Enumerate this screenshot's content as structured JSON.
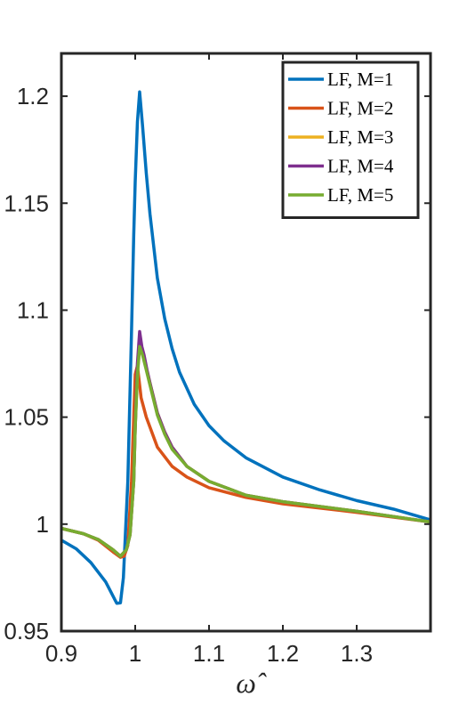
{
  "chart_data": {
    "type": "line",
    "xlabel": "ω̂",
    "ylabel": "",
    "xlim": [
      0.9,
      1.4
    ],
    "ylim": [
      0.95,
      1.22
    ],
    "xticks": [
      0.9,
      1.0,
      1.1,
      1.2,
      1.3
    ],
    "xtick_labels": [
      "0.9",
      "1",
      "1.1",
      "1.2",
      "1.3"
    ],
    "yticks": [
      0.95,
      1.0,
      1.05,
      1.1,
      1.15,
      1.2
    ],
    "ytick_labels": [
      "0.95",
      "1",
      "1.05",
      "1.1",
      "1.15",
      "1.2"
    ],
    "grid": false,
    "legend_position": "top-right",
    "series": [
      {
        "name": "LF, M=1",
        "color": "#0072BD",
        "points": [
          [
            0.9,
            0.9925
          ],
          [
            0.92,
            0.9885
          ],
          [
            0.94,
            0.982
          ],
          [
            0.96,
            0.973
          ],
          [
            0.975,
            0.963
          ],
          [
            0.98,
            0.9632
          ],
          [
            0.984,
            0.975
          ],
          [
            0.99,
            1.02
          ],
          [
            0.995,
            1.09
          ],
          [
            0.998,
            1.135
          ],
          [
            1.0,
            1.16
          ],
          [
            1.003,
            1.188
          ],
          [
            1.006,
            1.202
          ],
          [
            1.01,
            1.186
          ],
          [
            1.015,
            1.164
          ],
          [
            1.02,
            1.145
          ],
          [
            1.03,
            1.115
          ],
          [
            1.04,
            1.096
          ],
          [
            1.05,
            1.082
          ],
          [
            1.06,
            1.071
          ],
          [
            1.08,
            1.056
          ],
          [
            1.1,
            1.046
          ],
          [
            1.12,
            1.039
          ],
          [
            1.15,
            1.031
          ],
          [
            1.2,
            1.022
          ],
          [
            1.25,
            1.016
          ],
          [
            1.3,
            1.011
          ],
          [
            1.35,
            1.007
          ],
          [
            1.4,
            1.002
          ]
        ]
      },
      {
        "name": "LF, M=2",
        "color": "#D95319",
        "points": [
          [
            0.9,
            0.998
          ],
          [
            0.93,
            0.9955
          ],
          [
            0.95,
            0.9925
          ],
          [
            0.97,
            0.987
          ],
          [
            0.98,
            0.9845
          ],
          [
            0.985,
            0.985
          ],
          [
            0.99,
            0.99
          ],
          [
            0.995,
            1.02
          ],
          [
            0.998,
            1.05
          ],
          [
            1.0,
            1.07
          ],
          [
            1.003,
            1.074
          ],
          [
            1.008,
            1.059
          ],
          [
            1.015,
            1.05
          ],
          [
            1.03,
            1.036
          ],
          [
            1.05,
            1.027
          ],
          [
            1.07,
            1.022
          ],
          [
            1.1,
            1.017
          ],
          [
            1.15,
            1.0125
          ],
          [
            1.2,
            1.0095
          ],
          [
            1.3,
            1.0055
          ],
          [
            1.4,
            1.001
          ]
        ]
      },
      {
        "name": "LF, M=3",
        "color": "#EDB120",
        "points": [
          [
            0.9,
            0.998
          ],
          [
            0.93,
            0.9955
          ],
          [
            0.95,
            0.9928
          ],
          [
            0.97,
            0.988
          ],
          [
            0.98,
            0.985
          ],
          [
            0.988,
            0.988
          ],
          [
            0.993,
            0.995
          ],
          [
            0.998,
            1.02
          ],
          [
            1.0,
            1.045
          ],
          [
            1.003,
            1.07
          ],
          [
            1.006,
            1.082
          ],
          [
            1.01,
            1.08
          ],
          [
            1.015,
            1.073
          ],
          [
            1.02,
            1.066
          ],
          [
            1.03,
            1.052
          ],
          [
            1.04,
            1.043
          ],
          [
            1.05,
            1.036
          ],
          [
            1.07,
            1.027
          ],
          [
            1.1,
            1.02
          ],
          [
            1.15,
            1.0135
          ],
          [
            1.2,
            1.0105
          ],
          [
            1.3,
            1.006
          ],
          [
            1.4,
            1.001
          ]
        ]
      },
      {
        "name": "LF, M=4",
        "color": "#7E2F8E",
        "points": [
          [
            0.9,
            0.998
          ],
          [
            0.93,
            0.9955
          ],
          [
            0.95,
            0.9928
          ],
          [
            0.97,
            0.988
          ],
          [
            0.98,
            0.985
          ],
          [
            0.988,
            0.988
          ],
          [
            0.993,
            0.995
          ],
          [
            0.998,
            1.02
          ],
          [
            1.0,
            1.045
          ],
          [
            1.003,
            1.075
          ],
          [
            1.006,
            1.09
          ],
          [
            1.009,
            1.083
          ],
          [
            1.012,
            1.079
          ],
          [
            1.016,
            1.072
          ],
          [
            1.02,
            1.066
          ],
          [
            1.03,
            1.052
          ],
          [
            1.04,
            1.043
          ],
          [
            1.05,
            1.036
          ],
          [
            1.07,
            1.027
          ],
          [
            1.1,
            1.02
          ],
          [
            1.15,
            1.0135
          ],
          [
            1.2,
            1.0105
          ],
          [
            1.3,
            1.006
          ],
          [
            1.4,
            1.001
          ]
        ]
      },
      {
        "name": "LF, M=5",
        "color": "#77AC30",
        "points": [
          [
            0.9,
            0.998
          ],
          [
            0.93,
            0.9955
          ],
          [
            0.95,
            0.9928
          ],
          [
            0.97,
            0.988
          ],
          [
            0.98,
            0.985
          ],
          [
            0.988,
            0.988
          ],
          [
            0.993,
            0.995
          ],
          [
            0.998,
            1.02
          ],
          [
            1.0,
            1.045
          ],
          [
            1.003,
            1.07
          ],
          [
            1.006,
            1.083
          ],
          [
            1.01,
            1.079
          ],
          [
            1.015,
            1.072
          ],
          [
            1.02,
            1.065
          ],
          [
            1.03,
            1.051
          ],
          [
            1.04,
            1.042
          ],
          [
            1.05,
            1.035
          ],
          [
            1.07,
            1.027
          ],
          [
            1.1,
            1.02
          ],
          [
            1.15,
            1.0135
          ],
          [
            1.2,
            1.0105
          ],
          [
            1.3,
            1.006
          ],
          [
            1.4,
            1.001
          ]
        ]
      }
    ]
  }
}
